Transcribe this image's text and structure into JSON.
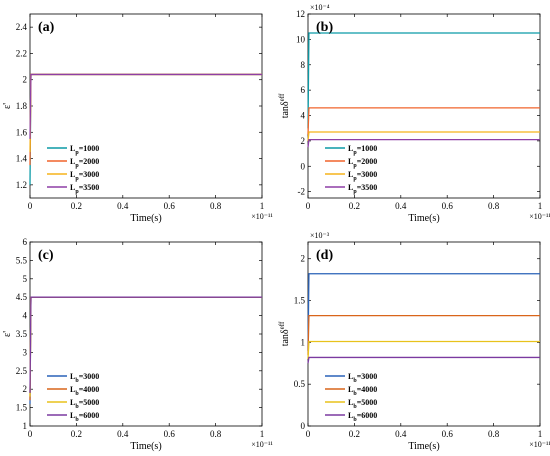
{
  "chart_data": [
    {
      "type": "line",
      "panel_label": "(a)",
      "xlabel": "Time(s)",
      "ylabel": "ε'",
      "x_exponent": "×10⁻¹¹",
      "y_exponent": "",
      "xlim": [
        0,
        1
      ],
      "ylim": [
        1.1,
        2.5
      ],
      "xticks": [
        "0",
        "0.2",
        "0.4",
        "0.6",
        "0.8",
        "1"
      ],
      "yticks": [
        "1.2",
        "1.4",
        "1.6",
        "1.8",
        "2",
        "2.2",
        "2.4"
      ],
      "ytick_values": [
        1.2,
        1.4,
        1.6,
        1.8,
        2.0,
        2.2,
        2.4
      ],
      "legend": "bottom-left",
      "series": [
        {
          "name": "Lp=1000",
          "label_main": "L",
          "label_sub": "p",
          "label_rest": "=1000",
          "color": "#0b9aa6",
          "steady": 2.04,
          "start": 1.2
        },
        {
          "name": "Lp=2000",
          "label_main": "L",
          "label_sub": "p",
          "label_rest": "=2000",
          "color": "#f0642c",
          "steady": 2.04,
          "start": 1.35
        },
        {
          "name": "Lp=3000",
          "label_main": "L",
          "label_sub": "p",
          "label_rest": "=3000",
          "color": "#f5b31b",
          "steady": 2.04,
          "start": 1.45
        },
        {
          "name": "Lp=3500",
          "label_main": "L",
          "label_sub": "p",
          "label_rest": "=3500",
          "color": "#8e3fa6",
          "steady": 2.04,
          "start": 1.55
        }
      ]
    },
    {
      "type": "line",
      "panel_label": "(b)",
      "xlabel": "Time(s)",
      "ylabel": "tanδ",
      "ylabel_sup": "eff",
      "x_exponent": "×10⁻¹¹",
      "y_exponent": "×10⁻⁴",
      "xlim": [
        0,
        1
      ],
      "ylim": [
        -2.5,
        12
      ],
      "xticks": [
        "0",
        "0.2",
        "0.4",
        "0.6",
        "0.8",
        "1"
      ],
      "yticks": [
        "-2",
        "0",
        "2",
        "4",
        "6",
        "8",
        "10",
        "12"
      ],
      "ytick_values": [
        -2,
        0,
        2,
        4,
        6,
        8,
        10,
        12
      ],
      "legend": "bottom-left",
      "series": [
        {
          "name": "Lp=1000",
          "label_main": "L",
          "label_sub": "p",
          "label_rest": "=1000",
          "color": "#0b9aa6",
          "steady": 10.5,
          "start": 3.0
        },
        {
          "name": "Lp=2000",
          "label_main": "L",
          "label_sub": "p",
          "label_rest": "=2000",
          "color": "#f0642c",
          "steady": 4.6,
          "start": 2.5
        },
        {
          "name": "Lp=3000",
          "label_main": "L",
          "label_sub": "p",
          "label_rest": "=3000",
          "color": "#f5b31b",
          "steady": 2.7,
          "start": 2.0
        },
        {
          "name": "Lp=3500",
          "label_main": "L",
          "label_sub": "p",
          "label_rest": "=3500",
          "color": "#8e3fa6",
          "steady": 2.1,
          "start": 1.5
        }
      ]
    },
    {
      "type": "line",
      "panel_label": "(c)",
      "xlabel": "Time(s)",
      "ylabel": "ε'",
      "x_exponent": "×10⁻¹¹",
      "y_exponent": "",
      "xlim": [
        0,
        1
      ],
      "ylim": [
        1,
        6
      ],
      "xticks": [
        "0",
        "0.2",
        "0.4",
        "0.6",
        "0.8",
        "1"
      ],
      "yticks": [
        "1",
        "1.5",
        "2",
        "2.5",
        "3",
        "3.5",
        "4",
        "4.5",
        "5",
        "5.5",
        "6"
      ],
      "ytick_values": [
        1,
        1.5,
        2,
        2.5,
        3,
        3.5,
        4,
        4.5,
        5,
        5.5,
        6
      ],
      "legend": "bottom-left",
      "series": [
        {
          "name": "Lb=3000",
          "label_main": "L",
          "label_sub": "b",
          "label_rest": "=3000",
          "color": "#2a62b8",
          "steady": 4.5,
          "start": 1.6
        },
        {
          "name": "Lb=4000",
          "label_main": "L",
          "label_sub": "b",
          "label_rest": "=4000",
          "color": "#d9651a",
          "steady": 4.5,
          "start": 1.7
        },
        {
          "name": "Lb=5000",
          "label_main": "L",
          "label_sub": "b",
          "label_rest": "=5000",
          "color": "#e8c21c",
          "steady": 4.5,
          "start": 1.8
        },
        {
          "name": "Lb=6000",
          "label_main": "L",
          "label_sub": "b",
          "label_rest": "=6000",
          "color": "#7b3aa0",
          "steady": 4.5,
          "start": 1.9
        }
      ]
    },
    {
      "type": "line",
      "panel_label": "(d)",
      "xlabel": "Time(s)",
      "ylabel": "tanδ",
      "ylabel_sup": "eff",
      "x_exponent": "×10⁻¹¹",
      "y_exponent": "×10⁻³",
      "xlim": [
        0,
        1
      ],
      "ylim": [
        0,
        2.2
      ],
      "xticks": [
        "0",
        "0.2",
        "0.4",
        "0.6",
        "0.8",
        "1"
      ],
      "yticks": [
        "0",
        "0.5",
        "1",
        "1.5",
        "2"
      ],
      "ytick_values": [
        0,
        0.5,
        1,
        1.5,
        2
      ],
      "legend": "bottom-left",
      "series": [
        {
          "name": "Lb=3000",
          "label_main": "L",
          "label_sub": "b",
          "label_rest": "=3000",
          "color": "#2a62b8",
          "steady": 1.82,
          "start": 0.9
        },
        {
          "name": "Lb=4000",
          "label_main": "L",
          "label_sub": "b",
          "label_rest": "=4000",
          "color": "#d9651a",
          "steady": 1.32,
          "start": 0.85
        },
        {
          "name": "Lb=5000",
          "label_main": "L",
          "label_sub": "b",
          "label_rest": "=5000",
          "color": "#e8c21c",
          "steady": 1.01,
          "start": 0.8
        },
        {
          "name": "Lb=6000",
          "label_main": "L",
          "label_sub": "b",
          "label_rest": "=6000",
          "color": "#7b3aa0",
          "steady": 0.82,
          "start": 0.75
        }
      ]
    }
  ]
}
